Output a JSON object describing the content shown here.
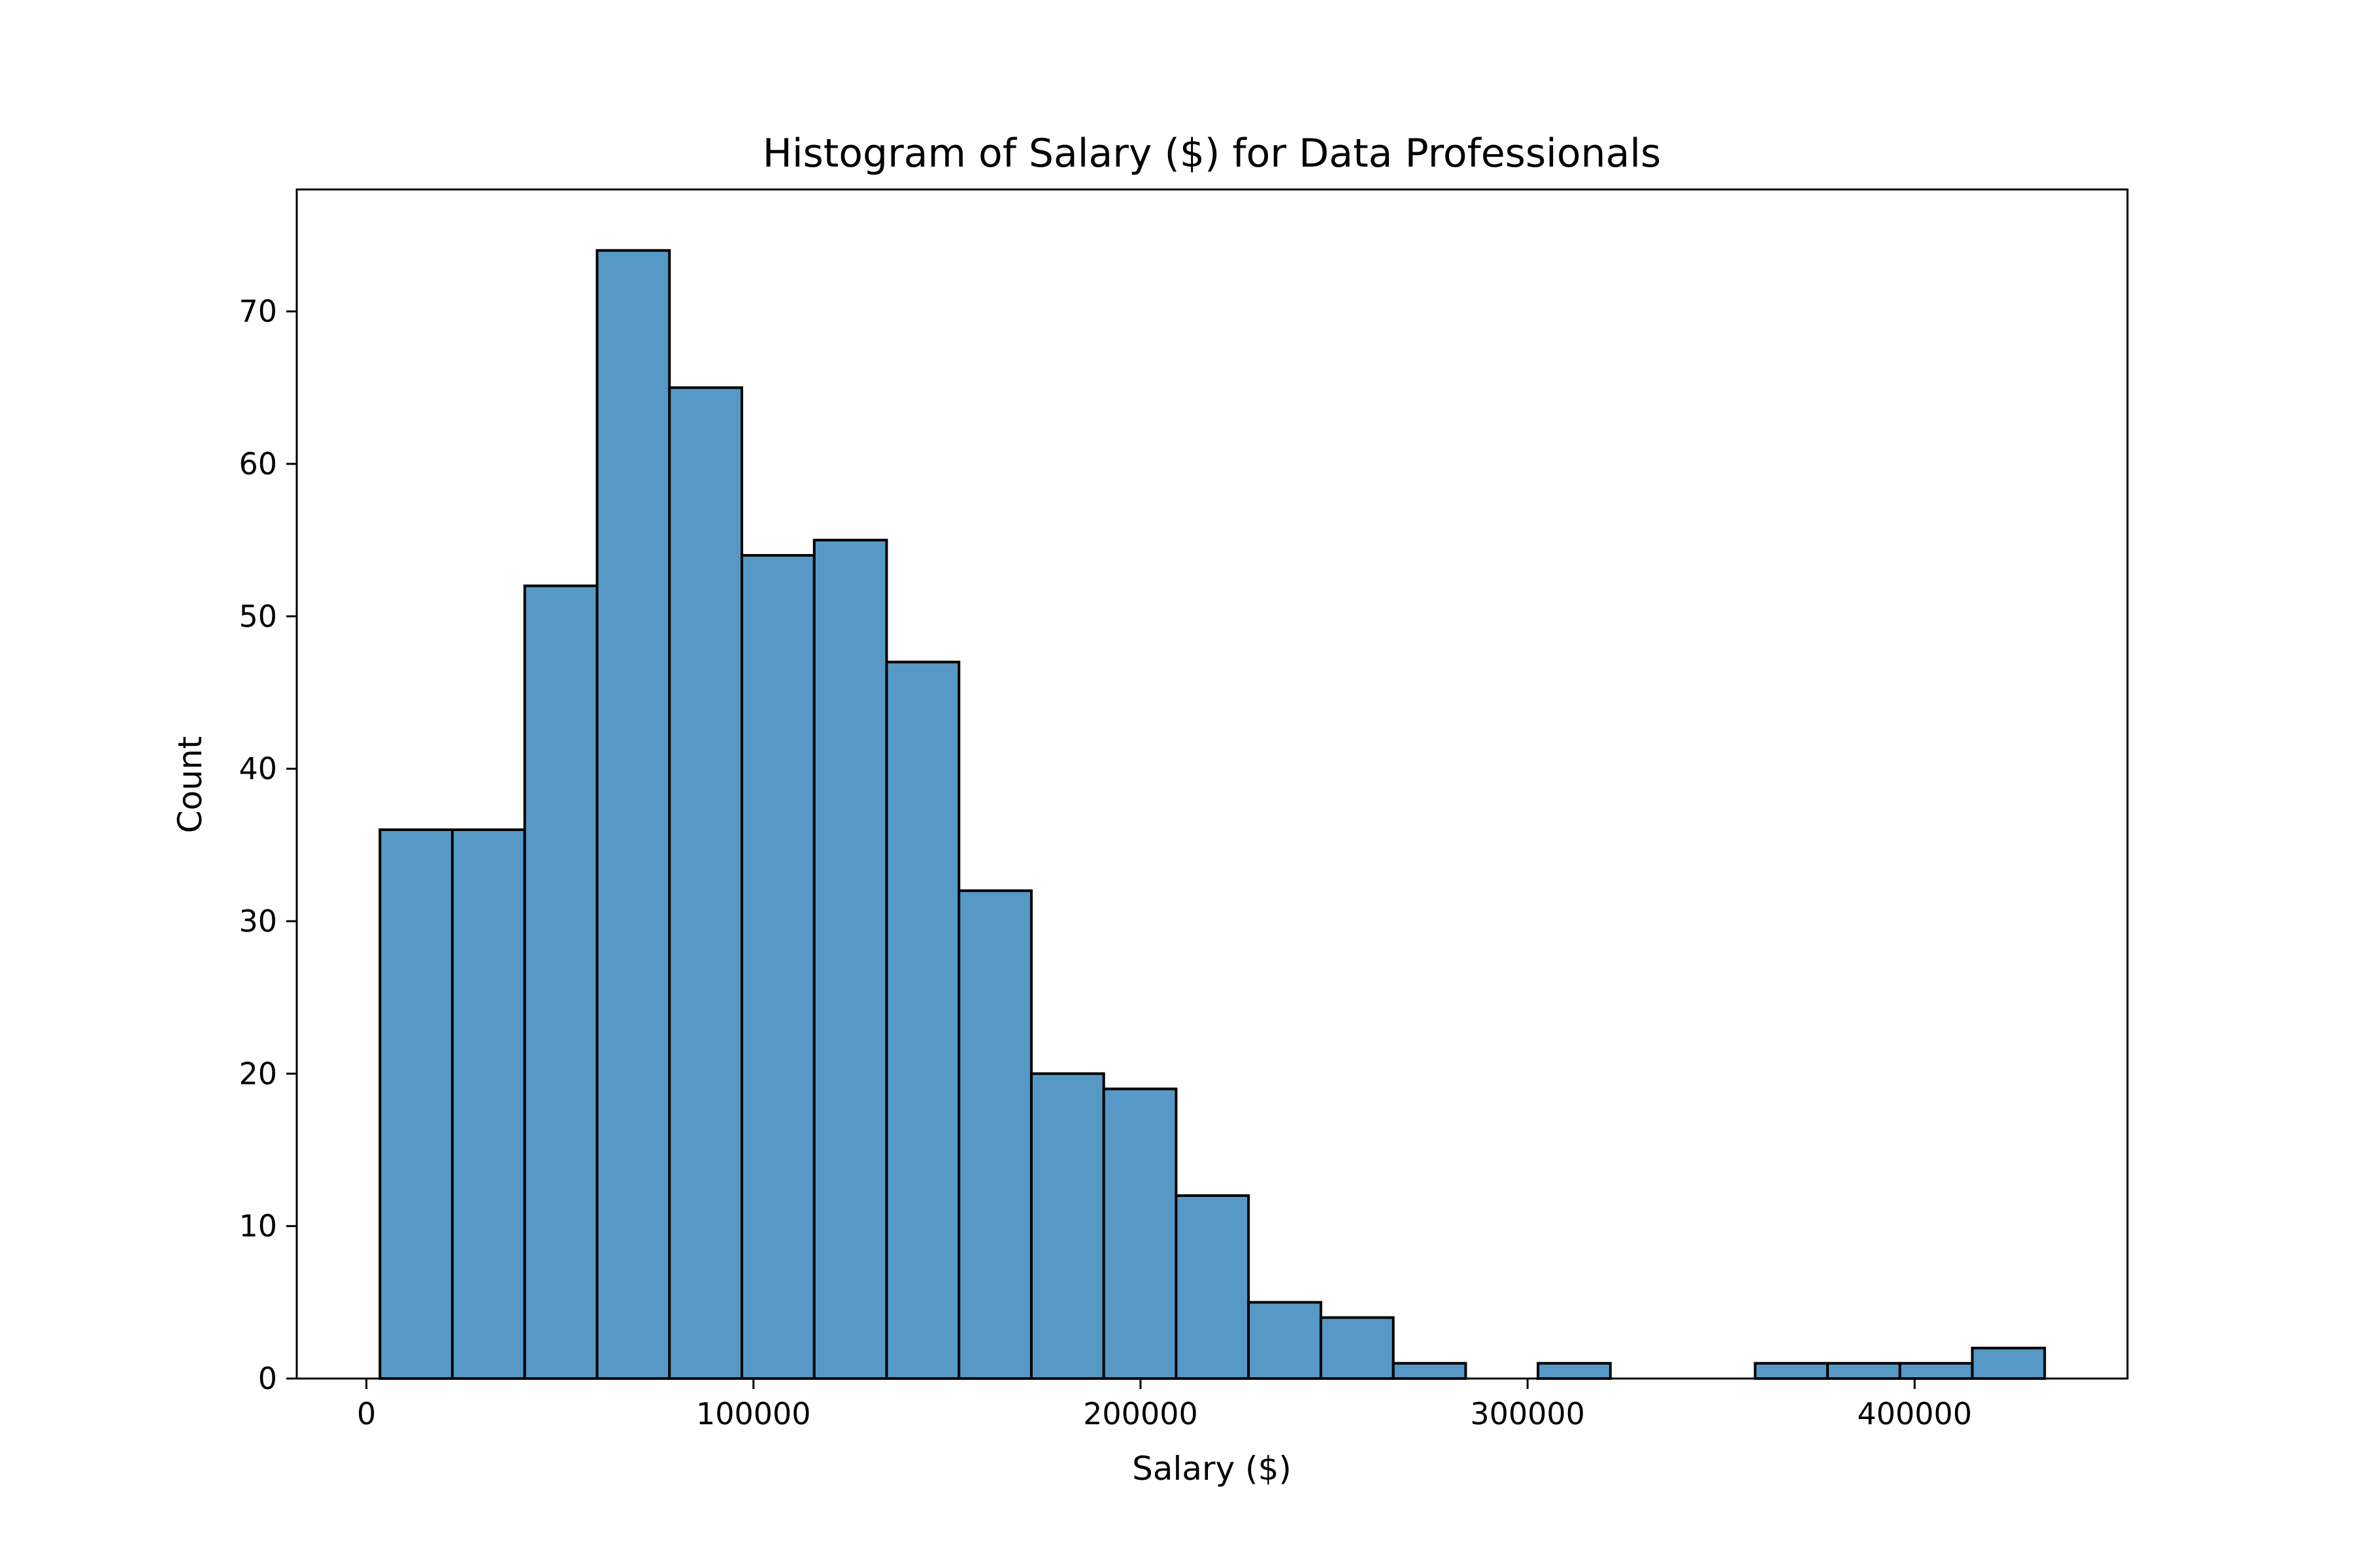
{
  "chart_data": {
    "type": "bar",
    "title": "Histogram of Salary ($) for Data Professionals",
    "xlabel": "Salary ($)",
    "ylabel": "Count",
    "bin_edges": [
      3500,
      22200,
      40900,
      59600,
      78300,
      97000,
      115700,
      134400,
      153100,
      171800,
      190500,
      209200,
      227900,
      246600,
      265300,
      284000,
      302700,
      321400,
      340100,
      358800,
      377500,
      396200,
      414900,
      433600
    ],
    "counts": [
      36,
      36,
      52,
      74,
      65,
      54,
      55,
      47,
      32,
      20,
      19,
      12,
      5,
      4,
      1,
      0,
      1,
      0,
      0,
      1,
      1,
      1,
      2
    ],
    "xlim": [
      -18000,
      455000
    ],
    "ylim": [
      0,
      78
    ],
    "xticks": [
      0,
      100000,
      200000,
      300000,
      400000
    ],
    "yticks": [
      0,
      10,
      20,
      30,
      40,
      50,
      60,
      70
    ],
    "grid": false,
    "bar_color": "#5799c6",
    "edge_color": "#000000"
  }
}
